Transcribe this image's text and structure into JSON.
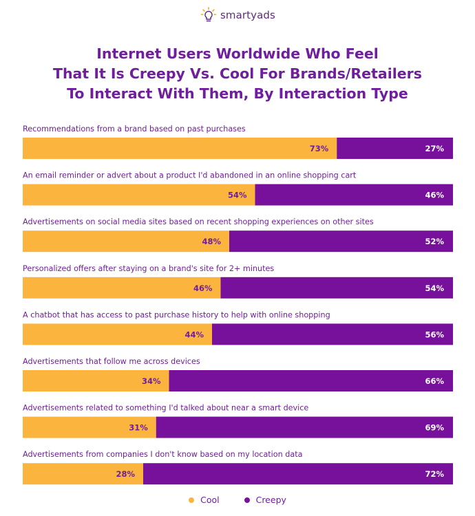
{
  "brand": {
    "name": "smartyads",
    "icon": "lightbulb-icon"
  },
  "colors": {
    "cool": "#fbb53f",
    "creepy": "#77119b",
    "label_text": "#6f1f9c",
    "title": "#6f1f9c",
    "brand": "#5e2b82"
  },
  "chart_data": {
    "type": "bar",
    "orientation": "horizontal",
    "stacked": true,
    "title": "Internet Users Worldwide Who Feel That It Is Creepy Vs. Cool For Brands/Retailers To Interact With Them, By Interaction Type",
    "title_lines": [
      "Internet Users Worldwide Who Feel",
      "That It Is Creepy Vs. Cool For Brands/Retailers",
      "To Interact With Them, By Interaction Type"
    ],
    "unit": "%",
    "xlim": [
      0,
      100
    ],
    "grid": false,
    "legend_position": "bottom-center",
    "categories": [
      "Recommendations from a brand based on past purchases",
      "An email reminder or advert about a product I'd abandoned in an online shopping cart",
      "Advertisements on social media sites based on recent shopping experiences on other sites",
      "Personalized offers after staying on a brand's site for 2+ minutes",
      "A chatbot that has access to past purchase history to help with online shopping",
      "Advertisements that follow me across devices",
      "Advertisements related to something I'd talked about near a smart device",
      "Advertisements from companies I don't know based on my location data"
    ],
    "series": [
      {
        "name": "Cool",
        "values": [
          73,
          54,
          48,
          46,
          44,
          34,
          31,
          28
        ],
        "labels": [
          "73%",
          "54%",
          "48%",
          "46%",
          "44%",
          "34%",
          "31%",
          "28%"
        ]
      },
      {
        "name": "Creepy",
        "values": [
          27,
          46,
          52,
          54,
          56,
          66,
          69,
          72
        ],
        "labels": [
          "27%",
          "46%",
          "52%",
          "54%",
          "56%",
          "66%",
          "69%",
          "72%"
        ]
      }
    ]
  }
}
